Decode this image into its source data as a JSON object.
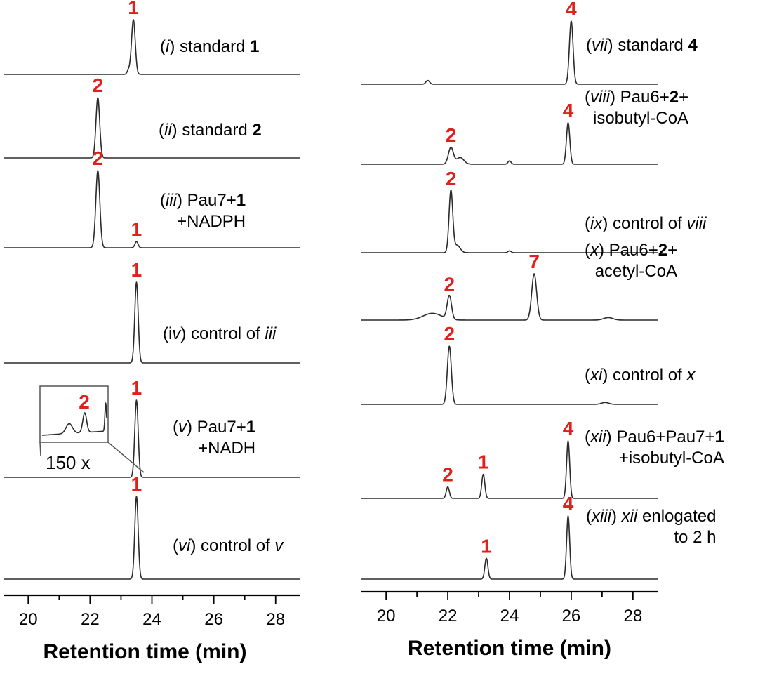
{
  "chart_data": {
    "type": "line",
    "colors": {
      "trace": "#2b2b2b",
      "peak_label": "#e0201b",
      "axis": "#000000"
    },
    "inset": {
      "panel": "v",
      "compound": "2",
      "label": "150 x"
    },
    "panels": [
      {
        "id": "left",
        "xlabel": "Retention time (min)",
        "xlim": [
          19.2,
          28.8
        ],
        "xticks": [
          20,
          22,
          24,
          26,
          28
        ],
        "traces": [
          {
            "id": "i",
            "label": [
              {
                "t": "(",
                "i": false,
                "b": false
              },
              {
                "t": "i",
                "i": true,
                "b": false
              },
              {
                "t": ") standard ",
                "i": false,
                "b": false
              },
              {
                "t": "1",
                "i": false,
                "b": true
              }
            ],
            "label2": [],
            "peaks": [
              {
                "compound": "1",
                "rt": 23.4,
                "height": 1.0,
                "width": 0.06
              },
              {
                "compound": "",
                "rt": 23.25,
                "height": 0.08,
                "width": 0.05
              }
            ]
          },
          {
            "id": "ii",
            "label": [
              {
                "t": "(",
                "i": false,
                "b": false
              },
              {
                "t": "ii",
                "i": true,
                "b": false
              },
              {
                "t": ") standard ",
                "i": false,
                "b": false
              },
              {
                "t": "2",
                "i": false,
                "b": true
              }
            ],
            "label2": [],
            "peaks": [
              {
                "compound": "2",
                "rt": 22.25,
                "height": 1.0,
                "width": 0.06
              }
            ]
          },
          {
            "id": "iii",
            "label": [
              {
                "t": "(",
                "i": false,
                "b": false
              },
              {
                "t": "iii",
                "i": true,
                "b": false
              },
              {
                "t": ") Pau7+",
                "i": false,
                "b": false
              },
              {
                "t": "1",
                "i": false,
                "b": true
              }
            ],
            "label2": [
              {
                "t": "+NADPH",
                "i": false,
                "b": false
              }
            ],
            "peaks": [
              {
                "compound": "2",
                "rt": 22.25,
                "height": 1.0,
                "width": 0.065
              },
              {
                "compound": "1",
                "rt": 23.5,
                "height": 0.08,
                "width": 0.05
              }
            ]
          },
          {
            "id": "iv",
            "label": [
              {
                "t": "(i",
                "i": false,
                "b": false
              },
              {
                "t": "v",
                "i": true,
                "b": false
              },
              {
                "t": ") control of ",
                "i": false,
                "b": false
              },
              {
                "t": "iii",
                "i": true,
                "b": false
              }
            ],
            "label2": [],
            "peaks": [
              {
                "compound": "1",
                "rt": 23.5,
                "height": 1.0,
                "width": 0.055
              }
            ]
          },
          {
            "id": "v",
            "label": [
              {
                "t": "(",
                "i": false,
                "b": false
              },
              {
                "t": "v",
                "i": true,
                "b": false
              },
              {
                "t": ") Pau7+",
                "i": false,
                "b": false
              },
              {
                "t": "1",
                "i": false,
                "b": true
              }
            ],
            "label2": [
              {
                "t": "+NADH",
                "i": false,
                "b": false
              }
            ],
            "peaks": [
              {
                "compound": "1",
                "rt": 23.5,
                "height": 1.0,
                "width": 0.055
              }
            ]
          },
          {
            "id": "vi",
            "label": [
              {
                "t": "(",
                "i": false,
                "b": false
              },
              {
                "t": "vi",
                "i": true,
                "b": false
              },
              {
                "t": ") control of ",
                "i": false,
                "b": false
              },
              {
                "t": "v",
                "i": true,
                "b": false
              }
            ],
            "label2": [],
            "peaks": [
              {
                "compound": "1",
                "rt": 23.5,
                "height": 1.0,
                "width": 0.055
              }
            ]
          }
        ]
      },
      {
        "id": "right",
        "xlabel": "Retention time (min)",
        "xlim": [
          19.2,
          28.8
        ],
        "xticks": [
          20,
          22,
          24,
          26,
          28
        ],
        "traces": [
          {
            "id": "vii",
            "label": [
              {
                "t": "(",
                "i": false,
                "b": false
              },
              {
                "t": "vii",
                "i": true,
                "b": false
              },
              {
                "t": ") standard ",
                "i": false,
                "b": false
              },
              {
                "t": "4",
                "i": false,
                "b": true
              }
            ],
            "label2": [],
            "peaks": [
              {
                "compound": "4",
                "rt": 26.0,
                "height": 1.0,
                "width": 0.06
              },
              {
                "compound": "",
                "rt": 21.35,
                "height": 0.06,
                "width": 0.06
              }
            ]
          },
          {
            "id": "viii",
            "label": [
              {
                "t": "(",
                "i": false,
                "b": false
              },
              {
                "t": "viii",
                "i": true,
                "b": false
              },
              {
                "t": ") Pau6+",
                "i": false,
                "b": false
              },
              {
                "t": "2",
                "i": false,
                "b": true
              },
              {
                "t": "+",
                "i": false,
                "b": false
              }
            ],
            "label2": [
              {
                "t": "isobutyl-CoA",
                "i": false,
                "b": false
              }
            ],
            "peaks": [
              {
                "compound": "2",
                "rt": 22.1,
                "height": 0.3,
                "width": 0.08
              },
              {
                "compound": "",
                "rt": 22.4,
                "height": 0.12,
                "width": 0.12
              },
              {
                "compound": "",
                "rt": 24.0,
                "height": 0.06,
                "width": 0.05
              },
              {
                "compound": "4",
                "rt": 25.9,
                "height": 0.74,
                "width": 0.055
              }
            ]
          },
          {
            "id": "ix",
            "label": [
              {
                "t": "(",
                "i": false,
                "b": false
              },
              {
                "t": "ix",
                "i": true,
                "b": false
              },
              {
                "t": ") control of ",
                "i": false,
                "b": false
              },
              {
                "t": "viii",
                "i": true,
                "b": false
              }
            ],
            "label2": [],
            "peaks": [
              {
                "compound": "2",
                "rt": 22.1,
                "height": 1.0,
                "width": 0.06
              },
              {
                "compound": "",
                "rt": 22.3,
                "height": 0.12,
                "width": 0.1
              },
              {
                "compound": "",
                "rt": 24.0,
                "height": 0.03,
                "width": 0.05
              }
            ]
          },
          {
            "id": "x",
            "label": [
              {
                "t": "(",
                "i": false,
                "b": false
              },
              {
                "t": "x",
                "i": true,
                "b": false
              },
              {
                "t": ") Pau6+",
                "i": false,
                "b": false
              },
              {
                "t": "2",
                "i": false,
                "b": true
              },
              {
                "t": "+",
                "i": false,
                "b": false
              }
            ],
            "label2": [
              {
                "t": "acetyl-CoA",
                "i": false,
                "b": false
              }
            ],
            "peaks": [
              {
                "compound": "",
                "rt": 21.5,
                "height": 0.08,
                "width": 0.3
              },
              {
                "compound": "2",
                "rt": 22.05,
                "height": 0.28,
                "width": 0.07
              },
              {
                "compound": "7",
                "rt": 24.8,
                "height": 0.55,
                "width": 0.08
              },
              {
                "compound": "",
                "rt": 27.2,
                "height": 0.03,
                "width": 0.15
              }
            ]
          },
          {
            "id": "xi",
            "label": [
              {
                "t": "(",
                "i": false,
                "b": false
              },
              {
                "t": "xi",
                "i": true,
                "b": false
              },
              {
                "t": ") control of ",
                "i": false,
                "b": false
              },
              {
                "t": "x",
                "i": true,
                "b": false
              }
            ],
            "label2": [],
            "peaks": [
              {
                "compound": "2",
                "rt": 22.05,
                "height": 0.92,
                "width": 0.065
              },
              {
                "compound": "",
                "rt": 27.1,
                "height": 0.03,
                "width": 0.12
              }
            ]
          },
          {
            "id": "xii",
            "label": [
              {
                "t": "(",
                "i": false,
                "b": false
              },
              {
                "t": "xii",
                "i": true,
                "b": false
              },
              {
                "t": ") Pau6+Pau7+",
                "i": false,
                "b": false
              },
              {
                "t": "1",
                "i": false,
                "b": true
              }
            ],
            "label2": [
              {
                "t": "+isobutyl-CoA",
                "i": false,
                "b": false
              }
            ],
            "peaks": [
              {
                "compound": "2",
                "rt": 22.0,
                "height": 0.2,
                "width": 0.05
              },
              {
                "compound": "1",
                "rt": 23.15,
                "height": 0.42,
                "width": 0.05
              },
              {
                "compound": "4",
                "rt": 25.9,
                "height": 1.0,
                "width": 0.05
              }
            ]
          },
          {
            "id": "xiii",
            "label": [
              {
                "t": "(",
                "i": false,
                "b": false
              },
              {
                "t": "xiii",
                "i": true,
                "b": false
              },
              {
                "t": ") ",
                "i": false,
                "b": false
              },
              {
                "t": "xii",
                "i": true,
                "b": false
              },
              {
                "t": " enlogated",
                "i": false,
                "b": false
              }
            ],
            "label2": [
              {
                "t": "to 2 h",
                "i": false,
                "b": false
              }
            ],
            "peaks": [
              {
                "compound": "1",
                "rt": 23.25,
                "height": 0.33,
                "width": 0.05
              },
              {
                "compound": "4",
                "rt": 25.9,
                "height": 1.0,
                "width": 0.05
              }
            ]
          }
        ]
      }
    ]
  }
}
